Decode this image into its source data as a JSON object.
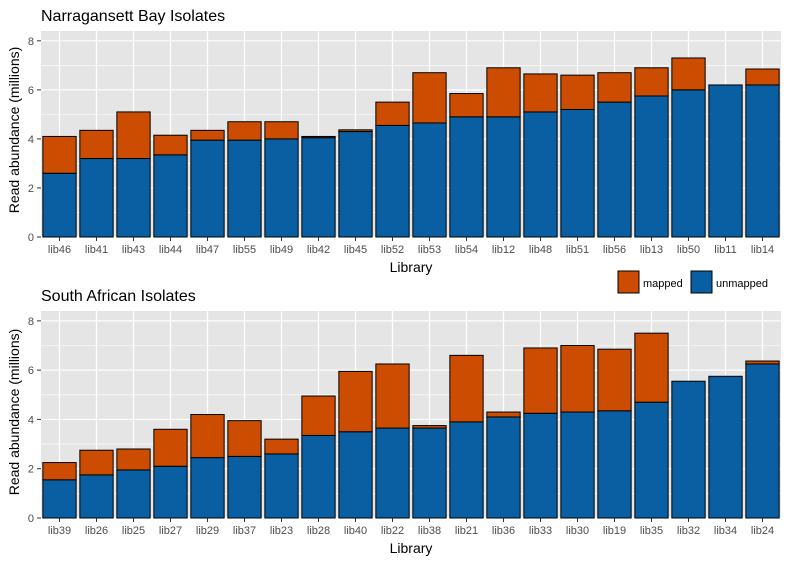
{
  "legend": {
    "items": [
      {
        "label": "mapped",
        "color": "#cc4c02"
      },
      {
        "label": "unmapped",
        "color": "#0a5fa3"
      }
    ]
  },
  "colors": {
    "mapped": "#cc4c02",
    "unmapped": "#0a5fa3",
    "panel_bg": "#e5e5e5",
    "grid": "#ffffff"
  },
  "chart_data": [
    {
      "type": "bar",
      "stacked": true,
      "title": "Narragansett Bay Isolates",
      "xlabel": "Library",
      "ylabel": "Read abundance (millions)",
      "ylim": [
        0,
        8.4
      ],
      "yticks": [
        0,
        2,
        4,
        6,
        8
      ],
      "categories": [
        "lib46",
        "lib41",
        "lib43",
        "lib44",
        "lib47",
        "lib55",
        "lib49",
        "lib42",
        "lib45",
        "lib52",
        "lib53",
        "lib54",
        "lib12",
        "lib48",
        "lib51",
        "lib56",
        "lib13",
        "lib50",
        "lib11",
        "lib14"
      ],
      "series": [
        {
          "name": "unmapped",
          "values": [
            2.6,
            3.2,
            3.2,
            3.35,
            3.95,
            3.95,
            4.0,
            4.05,
            4.3,
            4.55,
            4.65,
            4.9,
            4.9,
            5.1,
            5.2,
            5.5,
            5.75,
            6.0,
            6.2,
            6.2
          ]
        },
        {
          "name": "mapped",
          "values": [
            1.5,
            1.15,
            1.9,
            0.8,
            0.4,
            0.75,
            0.7,
            0.05,
            0.07,
            0.95,
            2.05,
            0.95,
            2.0,
            1.55,
            1.4,
            1.2,
            1.15,
            1.3,
            0.0,
            0.65
          ]
        }
      ],
      "grid": true,
      "legend_position": "bottom-right"
    },
    {
      "type": "bar",
      "stacked": true,
      "title": "South African Isolates",
      "xlabel": "Library",
      "ylabel": "Read abundance (millions)",
      "ylim": [
        0,
        8.4
      ],
      "yticks": [
        0,
        2,
        4,
        6,
        8
      ],
      "categories": [
        "lib39",
        "lib26",
        "lib25",
        "lib27",
        "lib29",
        "lib37",
        "lib23",
        "lib28",
        "lib40",
        "lib22",
        "lib38",
        "lib21",
        "lib36",
        "lib33",
        "lib30",
        "lib19",
        "lib35",
        "lib32",
        "lib34",
        "lib24"
      ],
      "series": [
        {
          "name": "unmapped",
          "values": [
            1.55,
            1.75,
            1.95,
            2.1,
            2.45,
            2.5,
            2.6,
            3.35,
            3.5,
            3.65,
            3.65,
            3.9,
            4.1,
            4.25,
            4.3,
            4.35,
            4.7,
            5.55,
            5.75,
            6.25
          ]
        },
        {
          "name": "mapped",
          "values": [
            0.7,
            1.0,
            0.85,
            1.5,
            1.75,
            1.45,
            0.6,
            1.6,
            2.45,
            2.6,
            0.1,
            2.7,
            0.2,
            2.65,
            2.7,
            2.5,
            2.8,
            0.0,
            0.0,
            0.12
          ]
        }
      ],
      "grid": true,
      "legend_position": "bottom-right"
    }
  ]
}
